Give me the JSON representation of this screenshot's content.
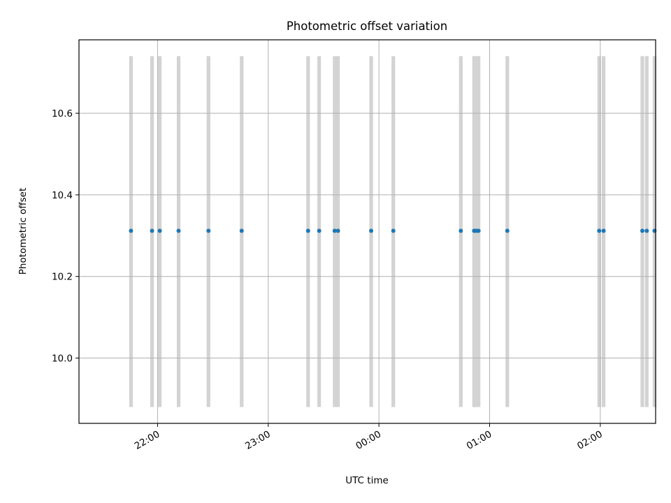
{
  "chart_data": {
    "type": "scatter",
    "title": "Photometric offset variation",
    "xlabel": "UTC time",
    "ylabel": "Photometric offset",
    "x_tick_labels": [
      "22:00",
      "23:00",
      "00:00",
      "01:00",
      "02:00"
    ],
    "x_tick_hours": [
      22,
      23,
      24,
      25,
      26
    ],
    "y_ticks": [
      10.0,
      10.2,
      10.4,
      10.6
    ],
    "xlim_hours": [
      21.29,
      26.5
    ],
    "ylim": [
      9.84,
      10.78
    ],
    "grid": true,
    "band_ylim": [
      9.88,
      10.74
    ],
    "x_hours": [
      21.76,
      21.95,
      22.02,
      22.19,
      22.46,
      22.76,
      23.36,
      23.46,
      23.6,
      23.63,
      23.93,
      24.13,
      24.74,
      24.86,
      24.88,
      24.9,
      25.16,
      25.99,
      26.03,
      26.38,
      26.42,
      26.49
    ],
    "y": [
      10.312,
      10.312,
      10.312,
      10.312,
      10.312,
      10.312,
      10.312,
      10.312,
      10.312,
      10.312,
      10.312,
      10.312,
      10.312,
      10.312,
      10.312,
      10.312,
      10.312,
      10.312,
      10.312,
      10.312,
      10.312,
      10.312
    ],
    "colors": {
      "points": "#1f77b4",
      "bands": "#d3d3d3",
      "grid": "#b0b0b0",
      "axes": "#000000"
    }
  }
}
